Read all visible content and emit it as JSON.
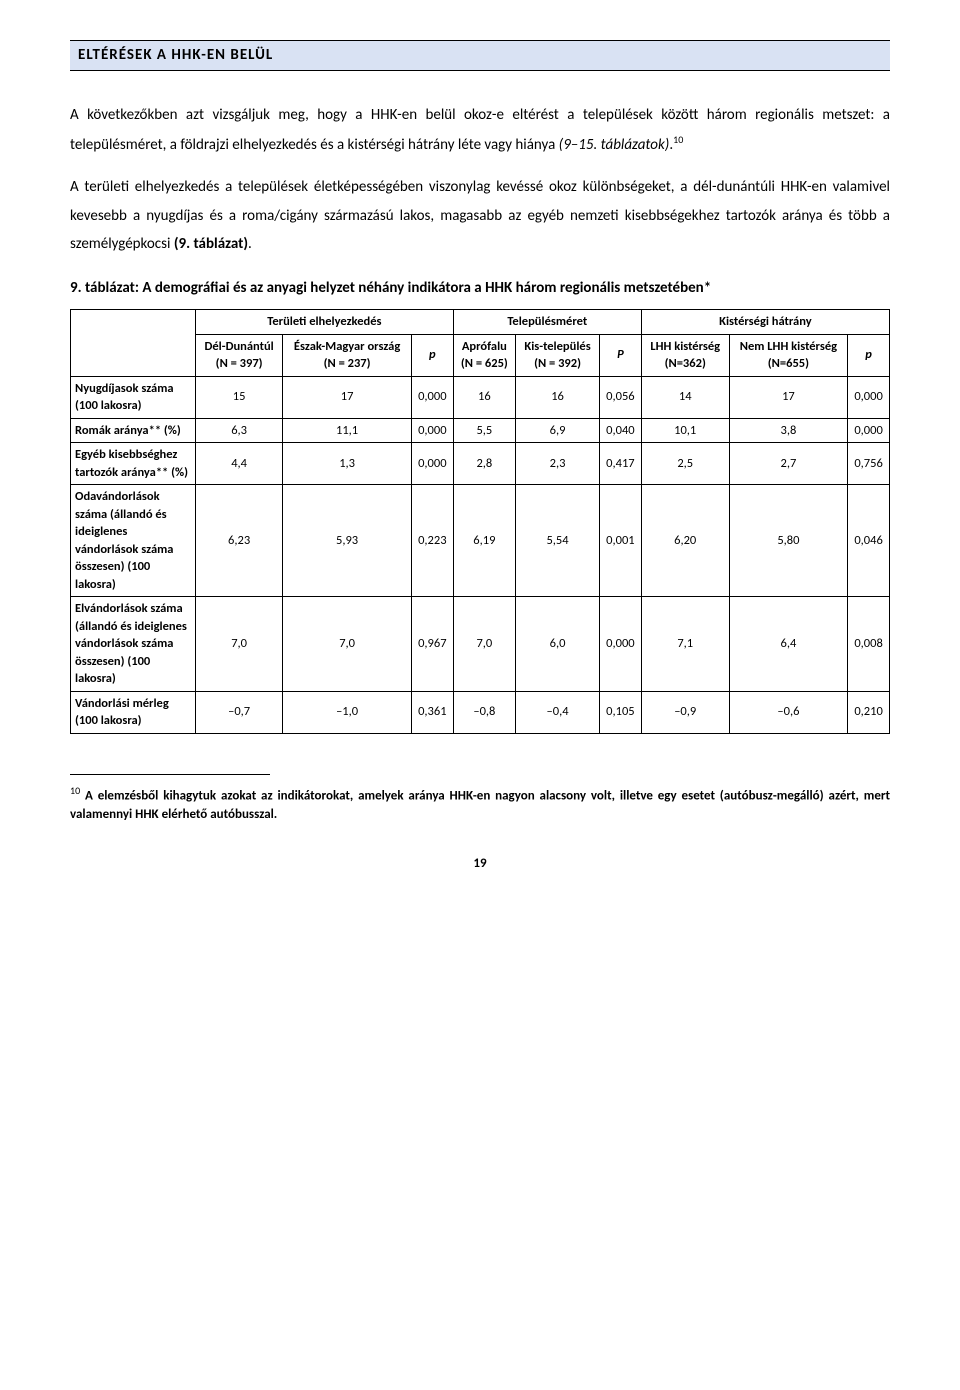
{
  "section_title": "ELTÉRÉSEK A HHK-EN BELÜL",
  "para1_pre": "A következőkben azt vizsgáljuk meg, hogy a HHK-en belül okoz-e eltérést a települések között három regionális metszet: a településméret, a földrajzi elhelyezkedés és a kistérségi hátrány léte vagy hiánya ",
  "para1_ital": "(9–15. táblázatok)",
  "para1_post": ".",
  "para1_sup": "10",
  "para2_pre": "A területi elhelyezkedés a települések életképességében viszonylag kevéssé okoz különbségeket, a dél-dunántúli HHK-en valamivel kevesebb a nyugdíjas és a roma/cigány származású lakos, magasabb az egyéb nemzeti kisebbségekhez tartozók aránya és több a személygépkocsi ",
  "para2_ital": "(9. táblázat)",
  "para2_post": ".",
  "table_caption": "9. táblázat: A demográfiai és az anyagi helyzet néhány indikátora a HHK három regionális metszetében*",
  "group_headers": {
    "g1": "Területi elhelyezkedés",
    "g2": "Településméret",
    "g3": "Kistérségi hátrány"
  },
  "col_headers": {
    "c1a": "Dél-Dunántúl",
    "c1a_n": "(N = 397)",
    "c1b": "Észak-Magyar ország",
    "c1b_n": "(N = 237)",
    "c1p": "p",
    "c2a": "Aprófalu",
    "c2a_n": "(N = 625)",
    "c2b": "Kis-település",
    "c2b_n": "(N = 392)",
    "c2p": "P",
    "c3a": "LHH kistérség",
    "c3a_n": "(N=362)",
    "c3b": "Nem LHH kistérség",
    "c3b_n": "(N=655)",
    "c3p": "p"
  },
  "rows": [
    {
      "label": "Nyugdíjasok száma (100 lakosra)",
      "v": [
        "15",
        "17",
        "0,000",
        "16",
        "16",
        "0,056",
        "14",
        "17",
        "0,000"
      ]
    },
    {
      "label": "Romák aránya** (%)",
      "v": [
        "6,3",
        "11,1",
        "0,000",
        "5,5",
        "6,9",
        "0,040",
        "10,1",
        "3,8",
        "0,000"
      ]
    },
    {
      "label": "Egyéb kisebbséghez tartozók aránya** (%)",
      "v": [
        "4,4",
        "1,3",
        "0,000",
        "2,8",
        "2,3",
        "0,417",
        "2,5",
        "2,7",
        "0,756"
      ]
    },
    {
      "label": "Odavándorlások száma (állandó és ideiglenes vándorlások száma összesen) (100 lakosra)",
      "v": [
        "6,23",
        "5,93",
        "0,223",
        "6,19",
        "5,54",
        "0,001",
        "6,20",
        "5,80",
        "0,046"
      ]
    },
    {
      "label": "Elvándorlások száma (állandó és ideiglenes vándorlások száma összesen) (100 lakosra)",
      "v": [
        "7,0",
        "7,0",
        "0,967",
        "7,0",
        "6,0",
        "0,000",
        "7,1",
        "6,4",
        "0,008"
      ]
    },
    {
      "label": "Vándorlási mérleg (100 lakosra)",
      "v": [
        "–0,7",
        "–1,0",
        "0,361",
        "–0,8",
        "–0,4",
        "0,105",
        "–0,9",
        "–0,6",
        "0,210"
      ]
    }
  ],
  "footnote_num": "10",
  "footnote_text": " A elemzésből kihagytuk azokat az indikátorokat, amelyek aránya HHK-en nagyon alacsony volt, illetve egy esetet (autóbusz-megálló) azért, mert valamennyi HHK elérhető autóbusszal.",
  "page_number": "19"
}
